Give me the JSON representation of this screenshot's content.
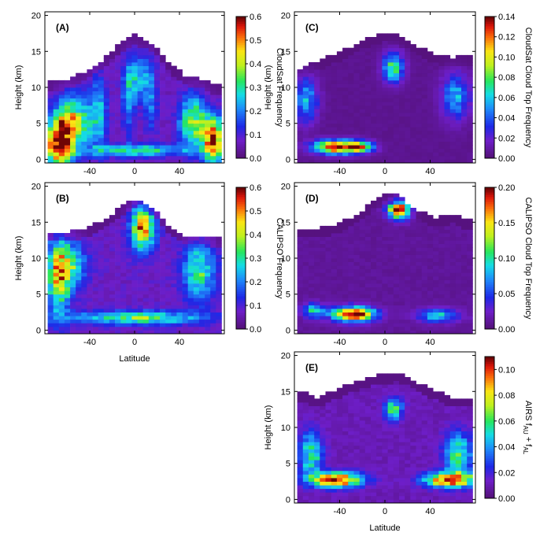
{
  "chart_data": [
    {
      "panel": "(A)",
      "type": "heatmap",
      "ylabel": "Height (km)",
      "xlabel": "",
      "colorbar_label": "CloudSat Frequency",
      "colorbar_ticks": [
        "0.0",
        "0.1",
        "0.2",
        "0.3",
        "0.4",
        "0.5",
        "0.6"
      ],
      "vmax": 0.6,
      "xticks": [
        "-40",
        "0",
        "40"
      ],
      "yticks": [
        "0",
        "5",
        "10",
        "15",
        "20"
      ],
      "xlim": [
        -80,
        80
      ],
      "ylim": [
        -0.5,
        20.5
      ],
      "top_profile_km": [
        [
          -76,
          10.5
        ],
        [
          -60,
          11
        ],
        [
          -45,
          12
        ],
        [
          -30,
          13.5
        ],
        [
          -20,
          15
        ],
        [
          -10,
          16.3
        ],
        [
          0,
          17.2
        ],
        [
          10,
          16.5
        ],
        [
          20,
          15.5
        ],
        [
          30,
          13.5
        ],
        [
          45,
          11.5
        ],
        [
          60,
          11
        ],
        [
          76,
          10
        ]
      ],
      "features": [
        {
          "lat": -70,
          "h": 2,
          "value": 0.55,
          "dlat": 12,
          "dh": 3
        },
        {
          "lat": -58,
          "h": 5,
          "value": 0.35,
          "dlat": 16,
          "dh": 3.5
        },
        {
          "lat": -35,
          "h": 6,
          "value": 0.18,
          "dlat": 8,
          "dh": 5
        },
        {
          "lat": -8,
          "h": 8,
          "value": 0.13,
          "dlat": 6,
          "dh": 5
        },
        {
          "lat": 0,
          "h": 11,
          "value": 0.2,
          "dlat": 10,
          "dh": 3
        },
        {
          "lat": 12,
          "h": 8,
          "value": 0.13,
          "dlat": 6,
          "dh": 5
        },
        {
          "lat": 50,
          "h": 5,
          "value": 0.32,
          "dlat": 12,
          "dh": 3.5
        },
        {
          "lat": 68,
          "h": 2.5,
          "value": 0.5,
          "dlat": 10,
          "dh": 3
        },
        {
          "lat": 0,
          "h": 1,
          "value": 0.25,
          "dlat": 45,
          "dh": 0.8
        }
      ],
      "base_value": 0.06
    },
    {
      "panel": "(B)",
      "type": "heatmap",
      "ylabel": "Height (km)",
      "xlabel": "Latitude",
      "colorbar_label": "CALIPSO Frequency",
      "colorbar_ticks": [
        "0.0",
        "0.1",
        "0.2",
        "0.3",
        "0.4",
        "0.5",
        "0.6"
      ],
      "vmax": 0.6,
      "xticks": [
        "-40",
        "0",
        "40"
      ],
      "yticks": [
        "0",
        "5",
        "10",
        "15",
        "20"
      ],
      "xlim": [
        -80,
        80
      ],
      "ylim": [
        -0.5,
        20.5
      ],
      "top_profile_km": [
        [
          -76,
          13.5
        ],
        [
          -60,
          13.5
        ],
        [
          -45,
          14
        ],
        [
          -30,
          15
        ],
        [
          -20,
          16
        ],
        [
          -10,
          17.3
        ],
        [
          0,
          18
        ],
        [
          10,
          17.5
        ],
        [
          20,
          16.5
        ],
        [
          30,
          14.5
        ],
        [
          45,
          13
        ],
        [
          60,
          13
        ],
        [
          76,
          12.5
        ]
      ],
      "features": [
        {
          "lat": 5,
          "h": 14,
          "value": 0.45,
          "dlat": 10,
          "dh": 3
        },
        {
          "lat": -70,
          "h": 7,
          "value": 0.35,
          "dlat": 10,
          "dh": 5
        },
        {
          "lat": -60,
          "h": 9,
          "value": 0.22,
          "dlat": 14,
          "dh": 3
        },
        {
          "lat": 55,
          "h": 8,
          "value": 0.25,
          "dlat": 14,
          "dh": 4
        },
        {
          "lat": 0,
          "h": 1.5,
          "value": 0.28,
          "dlat": 55,
          "dh": 0.9
        }
      ],
      "base_value": 0.07
    },
    {
      "panel": "(C)",
      "type": "heatmap",
      "ylabel": "Height (km)",
      "xlabel": "",
      "colorbar_label": "CloudSat Cloud Top Frequency",
      "colorbar_ticks": [
        "0.00",
        "0.02",
        "0.04",
        "0.06",
        "0.08",
        "0.10",
        "0.12",
        "0.14"
      ],
      "vmax": 0.14,
      "xticks": [
        "-40",
        "0",
        "40"
      ],
      "yticks": [
        "0",
        "5",
        "10",
        "15",
        "20"
      ],
      "xlim": [
        -80,
        80
      ],
      "ylim": [
        -0.5,
        20.5
      ],
      "top_profile_km": [
        [
          -76,
          12
        ],
        [
          -60,
          13.5
        ],
        [
          -45,
          14.5
        ],
        [
          -30,
          15.5
        ],
        [
          -20,
          16.5
        ],
        [
          -10,
          17
        ],
        [
          0,
          17.5
        ],
        [
          10,
          17.3
        ],
        [
          20,
          16.5
        ],
        [
          30,
          15.5
        ],
        [
          45,
          14.5
        ],
        [
          60,
          14
        ],
        [
          76,
          14.5
        ]
      ],
      "features": [
        {
          "lat": 5,
          "h": 12.5,
          "value": 0.07,
          "dlat": 9,
          "dh": 2
        },
        {
          "lat": -45,
          "h": 1.5,
          "value": 0.13,
          "dlat": 20,
          "dh": 0.9
        },
        {
          "lat": -25,
          "h": 1.5,
          "value": 0.07,
          "dlat": 12,
          "dh": 0.8
        },
        {
          "lat": -72,
          "h": 8,
          "value": 0.05,
          "dlat": 10,
          "dh": 3
        },
        {
          "lat": 60,
          "h": 8.5,
          "value": 0.05,
          "dlat": 12,
          "dh": 3
        }
      ],
      "base_value": 0.005
    },
    {
      "panel": "(D)",
      "type": "heatmap",
      "ylabel": "",
      "xlabel": "",
      "colorbar_label": "CALIPSO Cloud Top Frequency",
      "colorbar_ticks": [
        "0.00",
        "0.05",
        "0.10",
        "0.15",
        "0.20"
      ],
      "vmax": 0.2,
      "xticks": [
        "-40",
        "0",
        "40"
      ],
      "yticks": [
        "0",
        "5",
        "10",
        "15",
        "20"
      ],
      "xlim": [
        -80,
        80
      ],
      "ylim": [
        -0.5,
        20.5
      ],
      "top_profile_km": [
        [
          -76,
          14
        ],
        [
          -60,
          14
        ],
        [
          -45,
          14.5
        ],
        [
          -30,
          15.5
        ],
        [
          -20,
          16.5
        ],
        [
          -10,
          18
        ],
        [
          0,
          18.8
        ],
        [
          10,
          18.6
        ],
        [
          20,
          17.5
        ],
        [
          30,
          16.5
        ],
        [
          45,
          15.5
        ],
        [
          60,
          16
        ],
        [
          76,
          15
        ]
      ],
      "features": [
        {
          "lat": 10,
          "h": 16.5,
          "value": 0.19,
          "dlat": 9,
          "dh": 1.2
        },
        {
          "lat": -30,
          "h": 2,
          "value": 0.19,
          "dlat": 18,
          "dh": 1
        },
        {
          "lat": 45,
          "h": 1.8,
          "value": 0.08,
          "dlat": 18,
          "dh": 0.9
        },
        {
          "lat": -65,
          "h": 2.5,
          "value": 0.08,
          "dlat": 10,
          "dh": 1
        }
      ],
      "base_value": 0.01
    },
    {
      "panel": "(E)",
      "type": "heatmap",
      "ylabel": "Height (km)",
      "xlabel": "Latitude",
      "colorbar_label": "AIRS f_AU + f_AL",
      "colorbar_label_parts": [
        "AIRS f",
        "AU",
        " + f",
        "AL"
      ],
      "colorbar_ticks": [
        "0.00",
        "0.02",
        "0.04",
        "0.06",
        "0.08",
        "0.10"
      ],
      "vmax": 0.11,
      "xticks": [
        "-40",
        "0",
        "40"
      ],
      "yticks": [
        "0",
        "5",
        "10",
        "15",
        "20"
      ],
      "xlim": [
        -80,
        80
      ],
      "ylim": [
        -0.5,
        20.5
      ],
      "top_profile_km": [
        [
          -76,
          15
        ],
        [
          -60,
          14
        ],
        [
          -45,
          15
        ],
        [
          -30,
          16
        ],
        [
          -20,
          16.5
        ],
        [
          -10,
          17
        ],
        [
          0,
          17.3
        ],
        [
          10,
          17.5
        ],
        [
          20,
          17
        ],
        [
          30,
          16
        ],
        [
          45,
          15
        ],
        [
          60,
          14
        ],
        [
          76,
          14
        ]
      ],
      "features": [
        {
          "lat": 5,
          "h": 12.3,
          "value": 0.05,
          "dlat": 8,
          "dh": 1.5
        },
        {
          "lat": -45,
          "h": 2.5,
          "value": 0.1,
          "dlat": 22,
          "dh": 1
        },
        {
          "lat": 55,
          "h": 2.5,
          "value": 0.09,
          "dlat": 22,
          "dh": 1
        },
        {
          "lat": -68,
          "h": 6,
          "value": 0.05,
          "dlat": 10,
          "dh": 3
        },
        {
          "lat": 62,
          "h": 6,
          "value": 0.05,
          "dlat": 12,
          "dh": 3
        }
      ],
      "base_value": 0.01
    }
  ]
}
